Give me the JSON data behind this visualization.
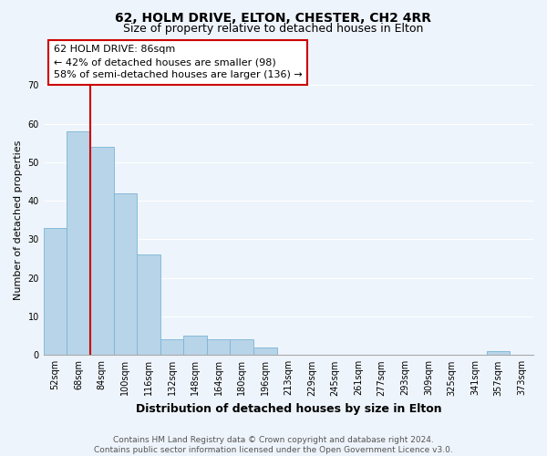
{
  "title": "62, HOLM DRIVE, ELTON, CHESTER, CH2 4RR",
  "subtitle": "Size of property relative to detached houses in Elton",
  "xlabel": "Distribution of detached houses by size in Elton",
  "ylabel": "Number of detached properties",
  "bin_labels": [
    "52sqm",
    "68sqm",
    "84sqm",
    "100sqm",
    "116sqm",
    "132sqm",
    "148sqm",
    "164sqm",
    "180sqm",
    "196sqm",
    "213sqm",
    "229sqm",
    "245sqm",
    "261sqm",
    "277sqm",
    "293sqm",
    "309sqm",
    "325sqm",
    "341sqm",
    "357sqm",
    "373sqm"
  ],
  "bar_heights": [
    33,
    58,
    54,
    42,
    26,
    4,
    5,
    4,
    4,
    2,
    0,
    0,
    0,
    0,
    0,
    0,
    0,
    0,
    0,
    1,
    0
  ],
  "bar_color": "#b8d4e8",
  "bar_edge_color": "#7ab5d6",
  "property_line_color": "#cc0000",
  "property_line_index": 2,
  "annotation_text_line1": "62 HOLM DRIVE: 86sqm",
  "annotation_text_line2": "← 42% of detached houses are smaller (98)",
  "annotation_text_line3": "58% of semi-detached houses are larger (136) →",
  "annotation_box_color": "#ffffff",
  "annotation_box_edge": "#cc0000",
  "ylim": [
    0,
    70
  ],
  "yticks": [
    0,
    10,
    20,
    30,
    40,
    50,
    60,
    70
  ],
  "footer_line1": "Contains HM Land Registry data © Crown copyright and database right 2024.",
  "footer_line2": "Contains public sector information licensed under the Open Government Licence v3.0.",
  "background_color": "#eef4fb",
  "grid_color": "#ffffff",
  "title_fontsize": 10,
  "subtitle_fontsize": 9,
  "ylabel_fontsize": 8,
  "xlabel_fontsize": 9,
  "tick_fontsize": 7,
  "annotation_fontsize": 8,
  "footer_fontsize": 6.5
}
